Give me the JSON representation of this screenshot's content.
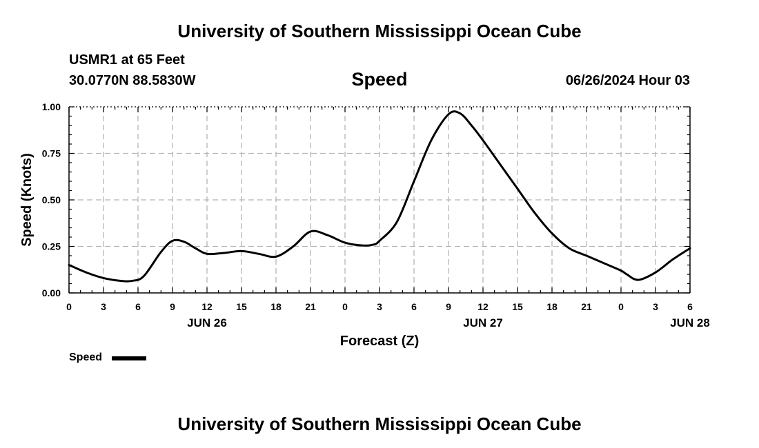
{
  "header": {
    "title": "University of Southern Mississippi Ocean Cube",
    "station": "USMR1 at 65 Feet",
    "coordinates": "30.0770N  88.5830W",
    "subtitle": "Speed",
    "datetime": "06/26/2024 Hour 03"
  },
  "footer": {
    "title": "University of Southern Mississippi Ocean Cube"
  },
  "legend": {
    "label": "Speed"
  },
  "chart_data": {
    "type": "line",
    "title": "Speed",
    "xlabel": "Forecast (Z)",
    "ylabel": "Speed (Knots)",
    "xlim": [
      0,
      54
    ],
    "ylim": [
      0,
      1
    ],
    "grid": true,
    "y_ticks": [
      0,
      0.25,
      0.5,
      0.75,
      1.0
    ],
    "y_tick_labels": [
      "0.00",
      "0.25",
      "0.50",
      "0.75",
      "1.00"
    ],
    "x_ticks": [
      0,
      3,
      6,
      9,
      12,
      15,
      18,
      21,
      24,
      27,
      30,
      33,
      36,
      39,
      42,
      45,
      48,
      51,
      54
    ],
    "x_tick_labels": [
      "0",
      "3",
      "6",
      "9",
      "12",
      "15",
      "18",
      "21",
      "0",
      "3",
      "6",
      "9",
      "12",
      "15",
      "18",
      "21",
      "0",
      "3",
      "6"
    ],
    "date_labels": [
      {
        "x": 12,
        "label": "JUN 26"
      },
      {
        "x": 36,
        "label": "JUN 27"
      },
      {
        "x": 54,
        "label": "JUN 28"
      }
    ],
    "series": [
      {
        "name": "Speed",
        "color": "#000000",
        "x": [
          0,
          1.5,
          3,
          4.5,
          5.5,
          6.5,
          8,
          9,
          10,
          11,
          12,
          13.5,
          15,
          16.5,
          18,
          19.5,
          21,
          22.5,
          24,
          25.5,
          26.5,
          27,
          28.5,
          30,
          31.5,
          33,
          34,
          35,
          36,
          37.5,
          39,
          40.5,
          42,
          43.5,
          45,
          46.5,
          48,
          48.5,
          49.5,
          51,
          52.5,
          54
        ],
        "values": [
          0.15,
          0.11,
          0.08,
          0.065,
          0.065,
          0.09,
          0.22,
          0.28,
          0.275,
          0.24,
          0.21,
          0.215,
          0.225,
          0.21,
          0.195,
          0.25,
          0.33,
          0.31,
          0.27,
          0.255,
          0.26,
          0.28,
          0.38,
          0.6,
          0.82,
          0.96,
          0.965,
          0.9,
          0.82,
          0.69,
          0.56,
          0.43,
          0.32,
          0.24,
          0.2,
          0.16,
          0.12,
          0.1,
          0.07,
          0.11,
          0.18,
          0.24
        ]
      }
    ]
  }
}
